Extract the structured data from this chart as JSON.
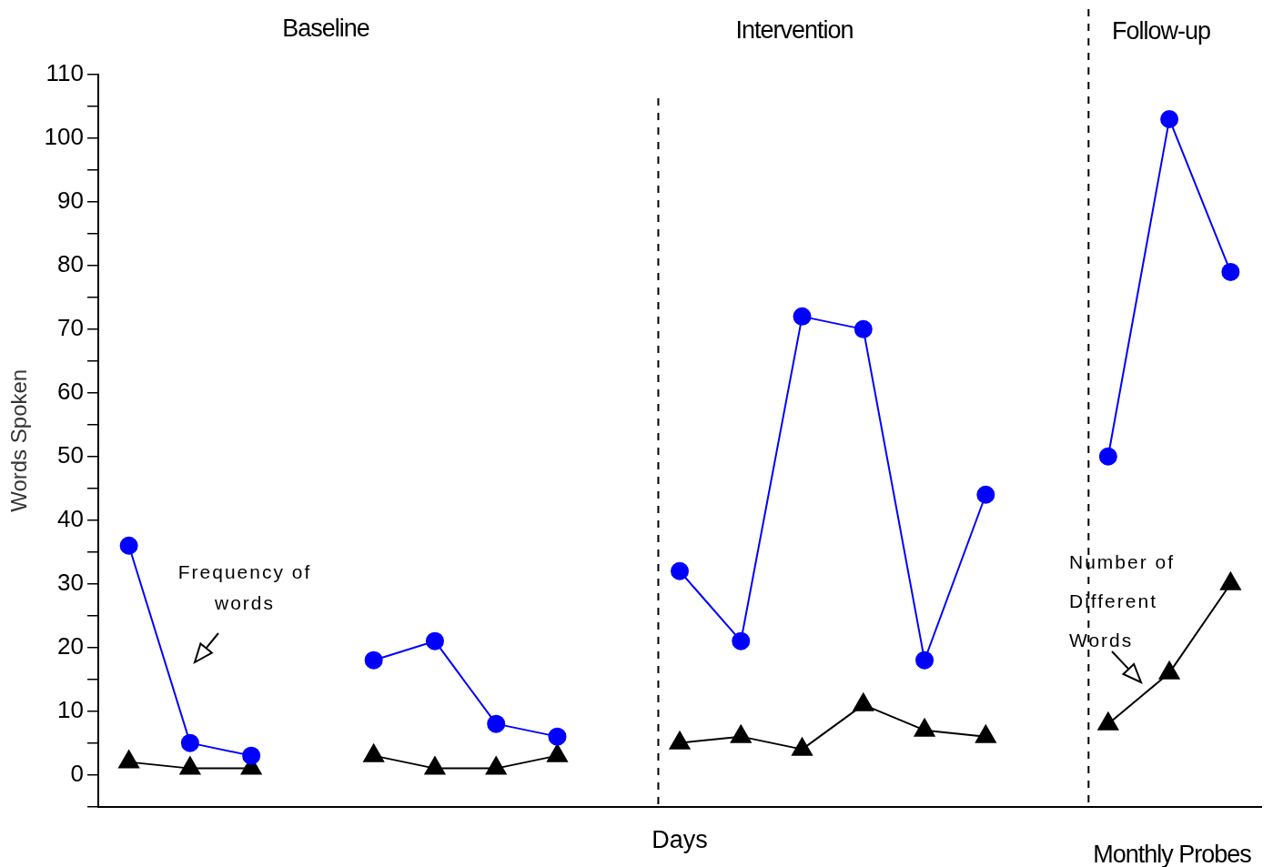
{
  "chart_data": {
    "type": "line",
    "categories": [
      null,
      null,
      null,
      null,
      null,
      null,
      null,
      null,
      null,
      null,
      null,
      null,
      null,
      null,
      null,
      null,
      null,
      null,
      null
    ],
    "ylim": [
      -5,
      110
    ],
    "yticks": [
      {
        "value": -5,
        "label": null
      },
      0,
      {
        "value": 5,
        "label": null
      },
      10,
      {
        "value": 15,
        "label": null
      },
      20,
      {
        "value": 25,
        "label": null
      },
      30,
      {
        "value": 35,
        "label": null
      },
      40,
      {
        "value": 45,
        "label": null
      },
      50,
      {
        "value": 55,
        "label": null
      },
      60,
      {
        "value": 65,
        "label": null
      },
      70,
      {
        "value": 75,
        "label": null
      },
      80,
      {
        "value": 85,
        "label": null
      },
      90,
      {
        "value": 95,
        "label": null
      },
      100,
      {
        "value": 105,
        "label": null
      },
      110
    ],
    "tick_labels": "y",
    "xlabel": "Days",
    "ylabel": "Words Spoken",
    "series": [
      {
        "color": "#0000ff",
        "marker": "circle",
        "values": [
          36,
          5,
          3,
          null,
          18,
          21,
          8,
          6,
          null,
          32,
          21,
          72,
          70,
          18,
          44,
          null,
          50,
          103,
          79
        ]
      },
      {
        "color": "#000000",
        "marker": "triangle",
        "values": [
          2,
          1,
          1,
          null,
          3,
          1,
          1,
          3,
          null,
          5,
          6,
          4,
          11,
          7,
          6,
          null,
          8,
          16,
          30
        ]
      }
    ],
    "annotations": [
      "Baseline",
      "Intervention",
      "Follow-up",
      "Monthly Probes",
      "Frequency of words",
      "Number of Different Words"
    ],
    "grid": false,
    "legend": false
  }
}
